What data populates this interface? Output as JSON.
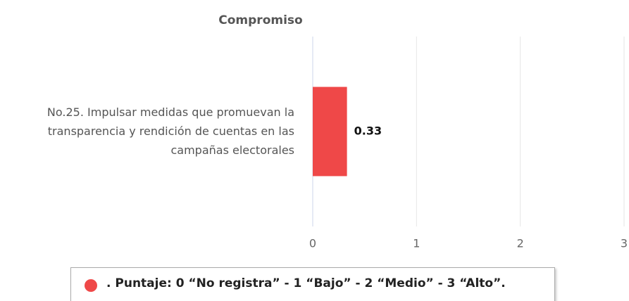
{
  "chart_data": {
    "type": "bar",
    "orientation": "horizontal",
    "title": "Compromiso",
    "categories": [
      "No.25. Impulsar medidas que promuevan la transparencia y rendición de cuentas en las campañas electorales"
    ],
    "series": [
      {
        "name": ". Puntaje: 0 “No registra” - 1 “Bajo” - 2 “Medio” - 3 “Alto”.",
        "color": "#ef4848",
        "values": [
          0.33
        ]
      }
    ],
    "xlim": [
      0,
      3
    ],
    "xticks": [
      0,
      1,
      2,
      3
    ],
    "grid": true
  }
}
